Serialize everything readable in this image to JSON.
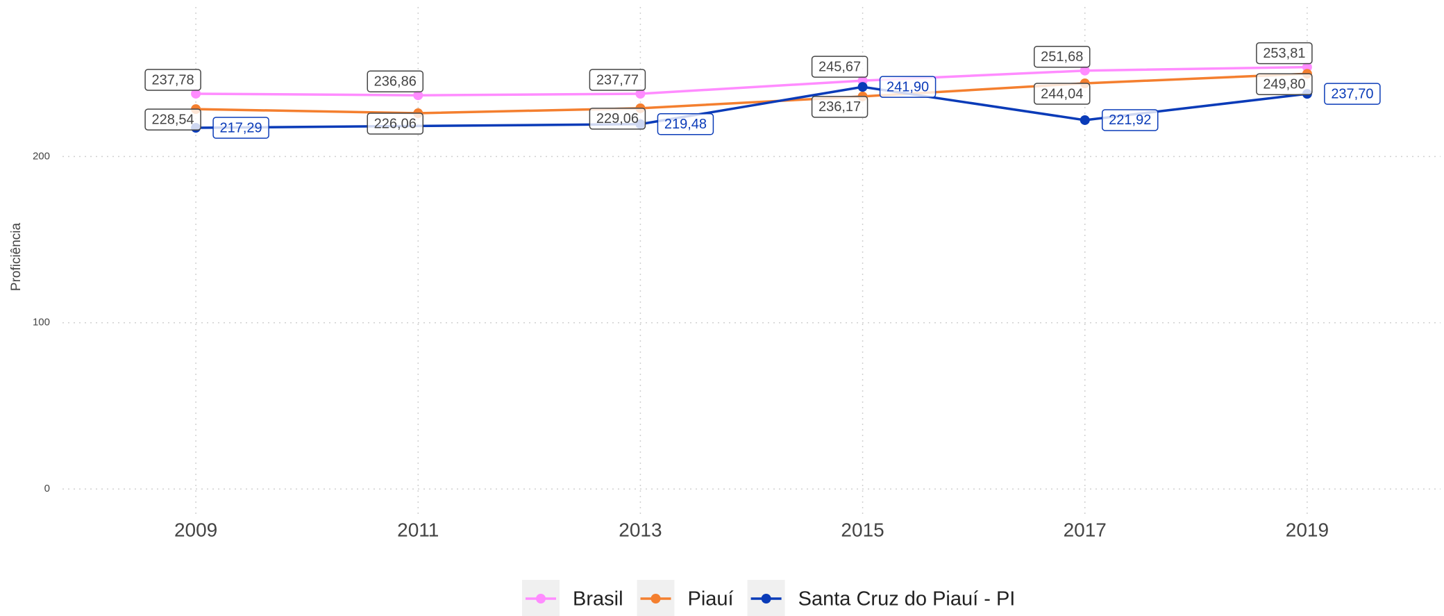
{
  "chart_data": {
    "type": "line",
    "y_label": "Proficiência",
    "x": [
      2009,
      2011,
      2013,
      2015,
      2017,
      2019
    ],
    "xlim": [
      2007.8,
      2020.2
    ],
    "xticks": [
      2009,
      2011,
      2013,
      2015,
      2017,
      2019
    ],
    "ylim": [
      -15,
      290
    ],
    "yticks": [
      0,
      100,
      200
    ],
    "grid": true,
    "legend": "bottom",
    "series": [
      {
        "name": "Brasil",
        "color": "#ff8cff",
        "label_color": "#444444",
        "values": [
          237.78,
          236.86,
          237.77,
          245.67,
          251.68,
          253.81
        ],
        "value_labels": [
          "237,78",
          "236,86",
          "237,77",
          "245,67",
          "251,68",
          "253,81"
        ]
      },
      {
        "name": "Piauí",
        "color": "#f47f2f",
        "label_color": "#444444",
        "values": [
          228.54,
          226.06,
          229.06,
          236.17,
          244.04,
          249.8
        ],
        "value_labels": [
          "228,54",
          "226,06",
          "229,06",
          "236,17",
          "244,04",
          "249,80"
        ]
      },
      {
        "name": "Santa Cruz do Piauí - PI",
        "color": "#0a3bb8",
        "label_color": "#0a3bb8",
        "x": [
          2009,
          2013,
          2015,
          2017,
          2019
        ],
        "values": [
          217.29,
          219.48,
          241.9,
          221.92,
          237.7
        ],
        "value_labels": [
          "217,29",
          "219,48",
          "241,90",
          "221,92",
          "237,70"
        ]
      }
    ]
  }
}
